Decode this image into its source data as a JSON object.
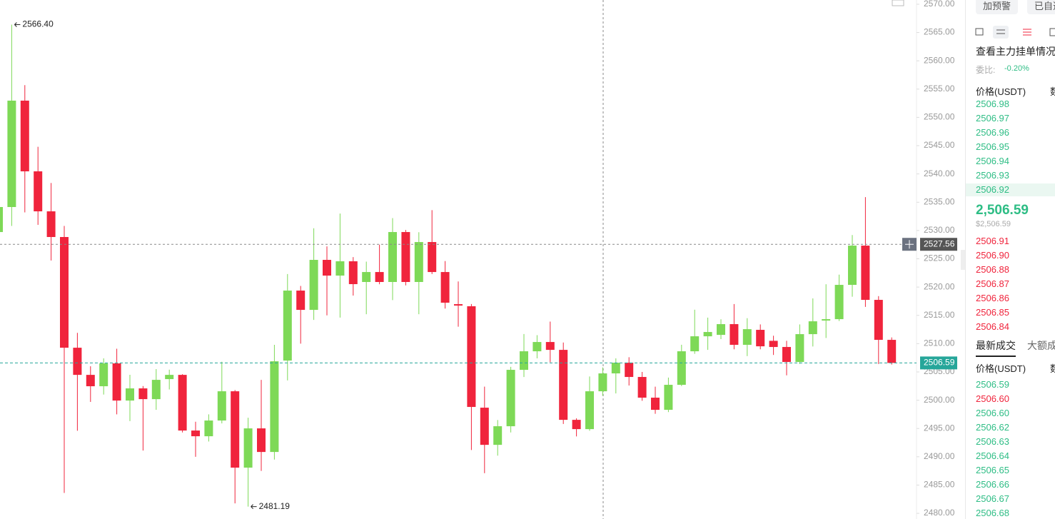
{
  "chart_data": {
    "type": "candlestick",
    "up_color": "#7ed957",
    "down_color": "#f0243c",
    "ylim": [
      2479,
      2570.75
    ],
    "yticks": [
      {
        "value": 2570,
        "label": "2570.00"
      },
      {
        "value": 2565,
        "label": "2565.00"
      },
      {
        "value": 2560,
        "label": "2560.00"
      },
      {
        "value": 2555,
        "label": "2555.00"
      },
      {
        "value": 2550,
        "label": "2550.00"
      },
      {
        "value": 2545,
        "label": "2545.00"
      },
      {
        "value": 2540,
        "label": "2540.00"
      },
      {
        "value": 2535,
        "label": "2535.00"
      },
      {
        "value": 2530,
        "label": "2530.00"
      },
      {
        "value": 2525,
        "label": "2525.00"
      },
      {
        "value": 2520,
        "label": "2520.00"
      },
      {
        "value": 2515,
        "label": "2515.00"
      },
      {
        "value": 2510,
        "label": "2510.00"
      },
      {
        "value": 2505,
        "label": "2505.00"
      },
      {
        "value": 2500,
        "label": "2500.00"
      },
      {
        "value": 2495,
        "label": "2495.00"
      },
      {
        "value": 2490,
        "label": "2490.00"
      },
      {
        "value": 2485,
        "label": "2485.00"
      },
      {
        "value": 2480,
        "label": "2480.00"
      }
    ],
    "open": [
      2529.73,
      2534.15,
      2552.96,
      2540.46,
      2533.39,
      2528.85,
      2509.28,
      2504.48,
      2502.47,
      2506.51,
      2499.94,
      2502.09,
      2500.19,
      2503.73,
      2504.48,
      2494.64,
      2493.63,
      2496.41,
      2501.58,
      2488.08,
      2495.02,
      2490.85,
      2507.01,
      2519.38,
      2515.97,
      2524.81,
      2522.03,
      2524.56,
      2520.9,
      2522.66,
      2520.9,
      2529.73,
      2520.9,
      2527.96,
      2522.66,
      2516.98,
      2516.61,
      2498.68,
      2492.11,
      2495.4,
      2505.37,
      2508.65,
      2510.29,
      2508.9,
      2496.53,
      2494.89,
      2501.58,
      2504.74,
      2506.63,
      2504.11,
      2500.45,
      2498.3,
      2502.72,
      2508.65,
      2511.3,
      2511.55,
      2513.45,
      2509.79,
      2512.44,
      2510.5,
      2509.41,
      2506.76,
      2511.68,
      2514.08,
      2514.33,
      2520.39,
      2527.33,
      2517.74,
      2510.67
    ],
    "high": [
      2535,
      2566.4,
      2555.7,
      2544.8,
      2538.4,
      2530.8,
      2511.9,
      2506,
      2507.4,
      2509.1,
      2504.5,
      2502.5,
      2505.5,
      2505.4,
      2504.6,
      2496.2,
      2497.5,
      2506.8,
      2501.8,
      2496.9,
      2503.6,
      2509.8,
      2522.3,
      2520.2,
      2530.4,
      2527.2,
      2533,
      2525.3,
      2524.5,
      2527.5,
      2532.2,
      2530.1,
      2529.7,
      2533.6,
      2524.6,
      2521,
      2517,
      2502.4,
      2496.5,
      2505.9,
      2511.7,
      2511.5,
      2513.9,
      2510.2,
      2496.8,
      2504.2,
      2505.8,
      2507.4,
      2507.6,
      2505,
      2502.4,
      2504,
      2509.8,
      2516,
      2514.6,
      2514.3,
      2517,
      2514.5,
      2513.4,
      2511.4,
      2510.5,
      2513.4,
      2518,
      2520.5,
      2522.2,
      2529.2,
      2535.9,
      2518.4,
      2511.1
    ],
    "low": [
      2529.5,
      2530.8,
      2533.2,
      2531,
      2524.7,
      2483.6,
      2494.6,
      2499.7,
      2501,
      2497.5,
      2496.3,
      2491.1,
      2498.3,
      2501.9,
      2494.3,
      2490,
      2492.7,
      2495.9,
      2481.76,
      2481.19,
      2487.5,
      2489.5,
      2503.5,
      2510,
      2514.2,
      2515,
      2514.6,
      2518.5,
      2515.2,
      2520.5,
      2517.7,
      2520.3,
      2515.2,
      2522.3,
      2516.2,
      2513,
      2491.2,
      2487.1,
      2490.2,
      2494.3,
      2504.1,
      2507.4,
      2506.7,
      2495.8,
      2493.6,
      2494.6,
      2500.8,
      2501.2,
      2502.6,
      2499.9,
      2497.6,
      2497.9,
      2502.5,
      2508.2,
      2508.9,
      2510.8,
      2509,
      2507.8,
      2509,
      2508,
      2504.4,
      2506.4,
      2509.5,
      2511,
      2514,
      2518.3,
      2516.5,
      2506.4,
      2506.3
    ],
    "close": [
      2534.15,
      2552.96,
      2540.46,
      2533.39,
      2528.85,
      2509.28,
      2504.48,
      2502.47,
      2506.51,
      2499.94,
      2502.09,
      2500.19,
      2503.6,
      2504.48,
      2494.64,
      2493.63,
      2496.41,
      2501.58,
      2488.08,
      2495.02,
      2490.85,
      2506.88,
      2519.38,
      2515.97,
      2524.81,
      2522.03,
      2524.56,
      2520.52,
      2522.66,
      2520.9,
      2529.73,
      2520.9,
      2527.96,
      2522.66,
      2517.24,
      2516.73,
      2498.81,
      2492.11,
      2495.4,
      2505.37,
      2508.65,
      2510.29,
      2508.9,
      2496.53,
      2494.89,
      2501.58,
      2504.74,
      2506.63,
      2504.11,
      2500.45,
      2498.3,
      2502.72,
      2508.65,
      2511.3,
      2512.06,
      2513.45,
      2509.79,
      2512.56,
      2509.53,
      2509.41,
      2506.76,
      2511.68,
      2513.95,
      2514.33,
      2520.39,
      2527.33,
      2517.74,
      2510.67,
      2506.59
    ],
    "annotations": [
      {
        "text": "2566.40",
        "value": 2566.4,
        "index": 1
      },
      {
        "text": "2481.19",
        "value": 2481.19,
        "index": 19
      }
    ],
    "crosshair": {
      "value": 2527.56,
      "label": "2527.56"
    },
    "last_price": {
      "value": 2506.59,
      "label": "2506.59",
      "color": "#26a69a"
    }
  },
  "panel": {
    "buttons": [
      "加预警",
      "已自选"
    ],
    "depth_title": "查看主力挂单情况",
    "ratio_label": "委比:",
    "ratio": "-0.20%",
    "price_header": "价格(USDT)",
    "qty_header": "数量",
    "ask_color": "#2ebd85",
    "bid_color": "#f0243c",
    "asks": [
      "2506.98",
      "2506.97",
      "2506.96",
      "2506.95",
      "2506.94",
      "2506.93",
      "2506.92"
    ],
    "last": "2,506.59",
    "last_usd": "$2,506.59",
    "bids": [
      "2506.91",
      "2506.90",
      "2506.88",
      "2506.87",
      "2506.86",
      "2506.85",
      "2506.84"
    ],
    "trade_tabs": [
      "最新成交",
      "大额成交"
    ],
    "trades": [
      {
        "price": "2506.59",
        "color": "#2ebd85"
      },
      {
        "price": "2506.60",
        "color": "#f0243c"
      },
      {
        "price": "2506.60",
        "color": "#2ebd85"
      },
      {
        "price": "2506.62",
        "color": "#2ebd85"
      },
      {
        "price": "2506.63",
        "color": "#2ebd85"
      },
      {
        "price": "2506.64",
        "color": "#2ebd85"
      },
      {
        "price": "2506.65",
        "color": "#2ebd85"
      },
      {
        "price": "2506.66",
        "color": "#2ebd85"
      },
      {
        "price": "2506.67",
        "color": "#2ebd85"
      },
      {
        "price": "2506.68",
        "color": "#2ebd85"
      }
    ]
  }
}
